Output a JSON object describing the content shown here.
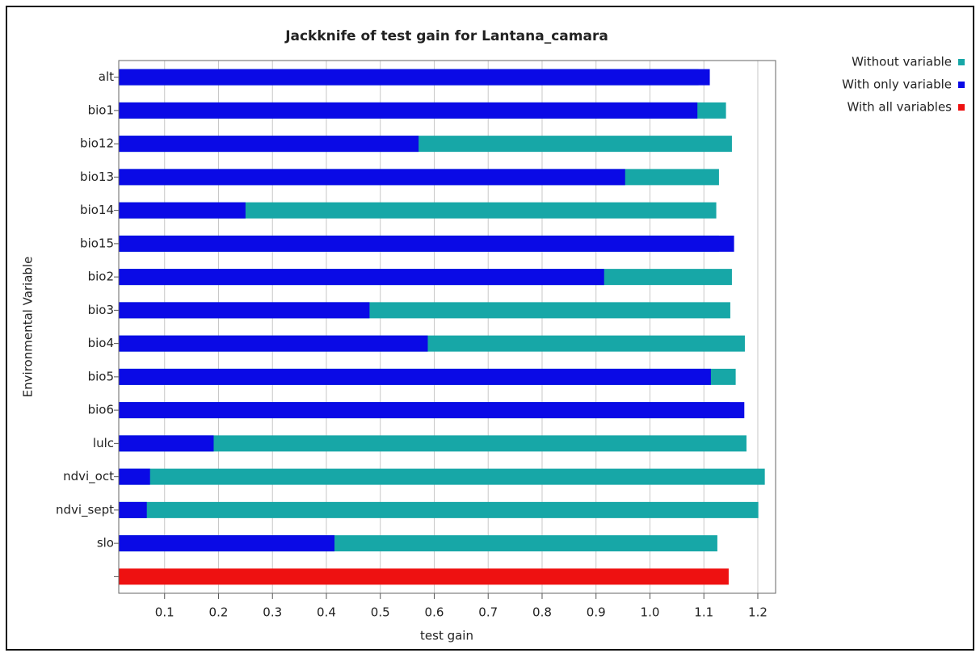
{
  "chart_data": {
    "type": "bar",
    "orientation": "horizontal",
    "title": "Jackknife of test gain for Lantana_camara",
    "x_label": "test gain",
    "y_label": "Environmental Variable",
    "categories": [
      "alt",
      "bio1",
      "bio12",
      "bio13",
      "bio14",
      "bio15",
      "bio2",
      "bio3",
      "bio4",
      "bio5",
      "bio6",
      "lulc",
      "ndvi_oct",
      "ndvi_sept",
      "slo",
      null
    ],
    "series": [
      {
        "name": "Without variable",
        "color": "#17a7a7",
        "values": [
          1.09,
          1.141,
          1.152,
          1.128,
          1.123,
          1.128,
          1.152,
          1.149,
          1.176,
          1.159,
          1.148,
          1.179,
          1.213,
          1.201,
          1.125,
          null
        ]
      },
      {
        "name": "With only variable",
        "color": "#0a0ae6",
        "values": [
          1.111,
          1.088,
          0.571,
          0.954,
          0.25,
          1.156,
          0.915,
          0.48,
          0.588,
          1.113,
          1.175,
          0.191,
          0.073,
          0.067,
          0.415,
          null
        ]
      },
      {
        "name": "With all variables",
        "color": "#ee1111",
        "values": [
          null,
          null,
          null,
          null,
          null,
          null,
          null,
          null,
          null,
          null,
          null,
          null,
          null,
          null,
          null,
          1.146
        ]
      }
    ],
    "xlim": [
      0.015,
      1.233
    ],
    "xticks": [
      0.1,
      0.2,
      0.3,
      0.4,
      0.5,
      0.6,
      0.7,
      0.8,
      0.9,
      {
        "value": 1,
        "label": "1.0"
      },
      1.1,
      1.2
    ],
    "grid": true,
    "legend": "top-right"
  }
}
